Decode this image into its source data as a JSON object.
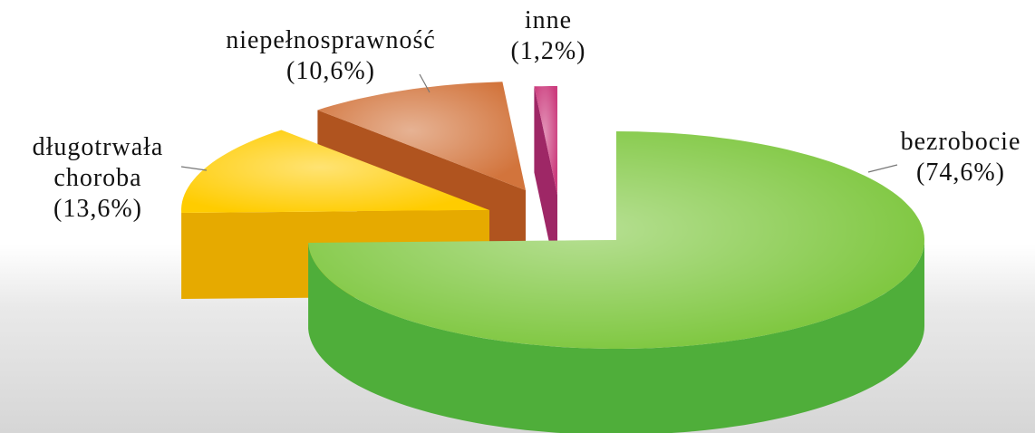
{
  "chart_data": {
    "type": "pie3d",
    "categories": [
      "bezrobocie",
      "długotrwała choroba",
      "niepełnosprawność",
      "inne"
    ],
    "values": [
      74.6,
      13.6,
      10.6,
      1.2
    ],
    "value_labels": [
      "(74,6%)",
      "(13,6%)",
      "(10,6%)",
      "(1,2%)"
    ],
    "colors": [
      "#7cc63c",
      "#ffcc00",
      "#d2743c",
      "#cc3d7e"
    ],
    "side_colors": [
      "#4fae3a",
      "#e6aa00",
      "#b0541f",
      "#9e2766"
    ]
  }
}
